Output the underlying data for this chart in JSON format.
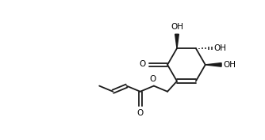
{
  "background": "#ffffff",
  "line_color": "#1a1a1a",
  "bond_lw": 1.3,
  "text_color": "#000000",
  "font_size": 7.5,
  "fig_width": 3.34,
  "fig_height": 1.77,
  "xlim": [
    0,
    10
  ],
  "ylim": [
    0,
    5.3
  ]
}
